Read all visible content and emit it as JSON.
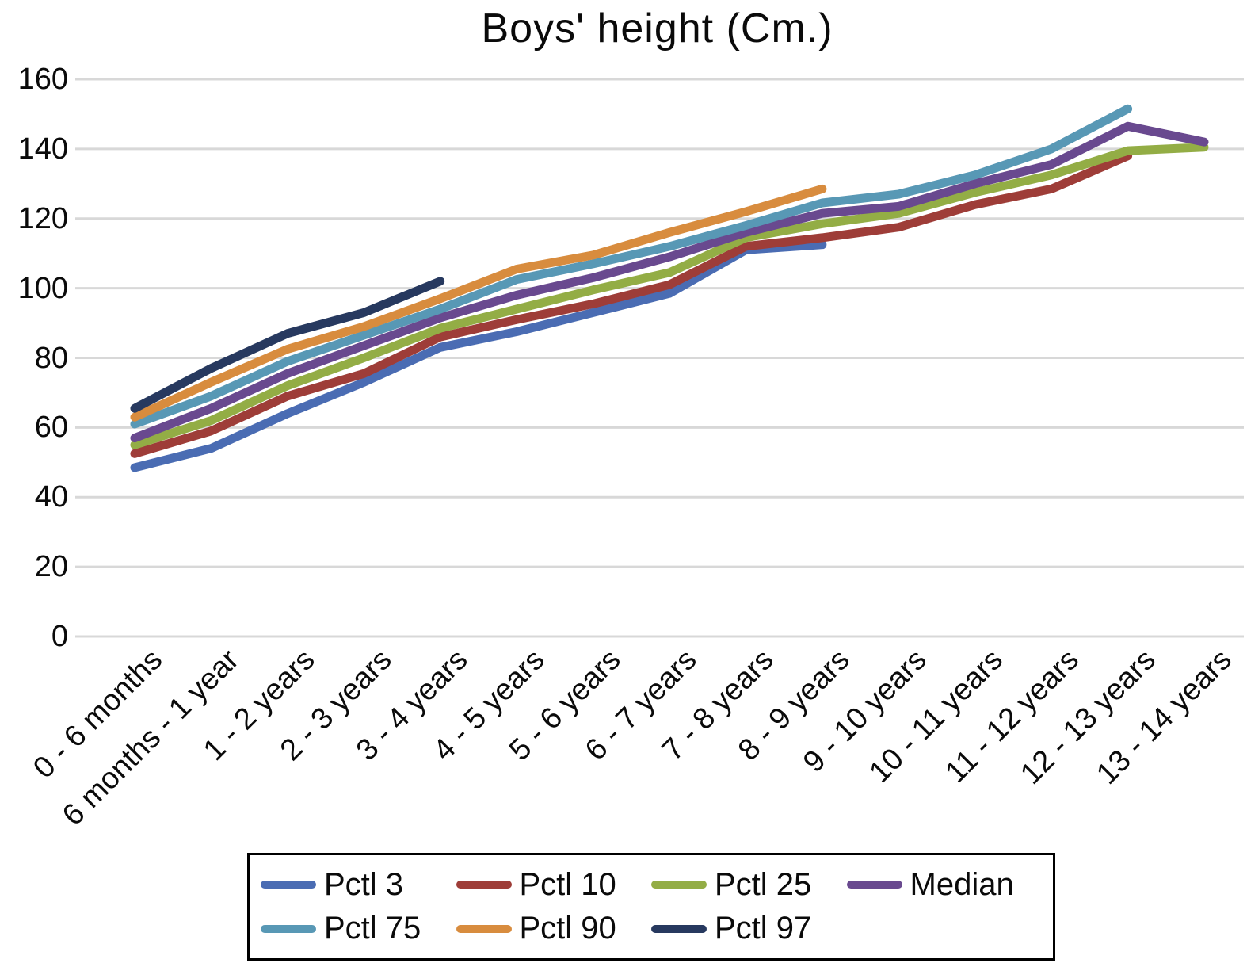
{
  "chart_data": {
    "type": "line",
    "title": "Boys' height (Cm.)",
    "xlabel": "",
    "ylabel": "",
    "ylim": [
      0,
      160
    ],
    "y_ticks": [
      0,
      20,
      40,
      60,
      80,
      100,
      120,
      140,
      160
    ],
    "grid": "horizontal",
    "legend_position": "bottom-boxed",
    "legend_rows": [
      [
        "Pctl 3",
        "Pctl 10",
        "Pctl 25",
        "Median"
      ],
      [
        "Pctl 75",
        "Pctl 90",
        "Pctl 97"
      ]
    ],
    "categories": [
      "0 - 6 months",
      "6 months - 1 year",
      "1 - 2 years",
      "2 - 3 years",
      "3 - 4 years",
      "4 - 5 years",
      "5 - 6 years",
      "6 - 7 years",
      "7 - 8 years",
      "8 - 9 years",
      "9 - 10 years",
      "10 - 11 years",
      "11 - 12 years",
      "12 - 13  years",
      "13 - 14 years"
    ],
    "series": [
      {
        "name": "Pctl 3",
        "color": "#4a6cb3",
        "values": [
          48.5,
          54,
          64,
          73,
          83,
          87.5,
          93,
          98.5,
          111,
          112.5,
          null,
          null,
          null,
          null,
          null
        ]
      },
      {
        "name": "Pctl 10",
        "color": "#9e3d38",
        "values": [
          52.5,
          59,
          69,
          75.5,
          86,
          91,
          95.5,
          101,
          112,
          114.5,
          117.5,
          124,
          128.5,
          138,
          null
        ]
      },
      {
        "name": "Pctl 25",
        "color": "#93ad45",
        "values": [
          55,
          62,
          72,
          80,
          88.5,
          94,
          99.5,
          104.5,
          114.5,
          118.5,
          121.5,
          127.5,
          132.5,
          139.5,
          140.5
        ]
      },
      {
        "name": "Median",
        "color": "#69498f",
        "values": [
          57,
          65.5,
          75.5,
          83.5,
          91.5,
          98,
          103,
          109,
          116,
          121.5,
          123.5,
          130,
          135.5,
          146.5,
          142
        ]
      },
      {
        "name": "Pctl 75",
        "color": "#5898b5",
        "values": [
          61,
          69,
          79,
          86.5,
          94,
          102.5,
          107,
          112,
          118,
          124.5,
          127,
          132.5,
          140,
          151.5,
          null
        ]
      },
      {
        "name": "Pctl 90",
        "color": "#d88c3e",
        "values": [
          63,
          73,
          82.5,
          89,
          97,
          105.5,
          109.5,
          116,
          122,
          128.5,
          null,
          null,
          null,
          null,
          null
        ]
      },
      {
        "name": "Pctl 97",
        "color": "#27395f",
        "values": [
          65.5,
          77,
          87,
          93,
          102,
          null,
          null,
          null,
          null,
          null,
          null,
          null,
          null,
          null,
          null
        ]
      }
    ]
  }
}
